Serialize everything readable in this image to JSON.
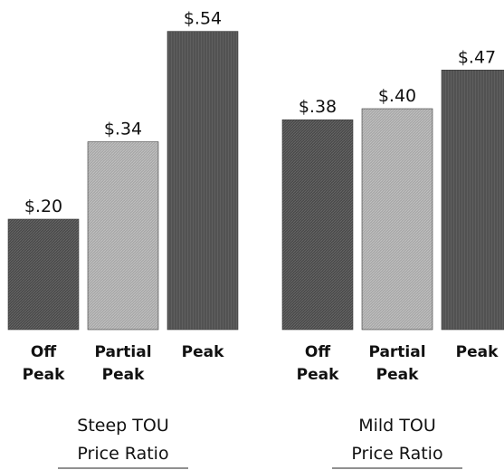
{
  "chart_data": {
    "type": "bar",
    "ylim": [
      0,
      0.6
    ],
    "grid": false,
    "legend": "none",
    "groups": [
      {
        "label_lines": [
          "Steep TOU",
          "Price Ratio"
        ],
        "bars": [
          {
            "category_lines": [
              "Off",
              "Peak"
            ],
            "value": 0.2,
            "label": "$.20",
            "color": "#4d4d4d"
          },
          {
            "category_lines": [
              "Partial",
              "Peak"
            ],
            "value": 0.34,
            "label": "$.34",
            "color": "#a6a6a6"
          },
          {
            "category_lines": [
              "Peak"
            ],
            "value": 0.54,
            "label": "$.54",
            "color": "#595959"
          }
        ]
      },
      {
        "label_lines": [
          "Mild TOU",
          "Price Ratio"
        ],
        "bars": [
          {
            "category_lines": [
              "Off",
              "Peak"
            ],
            "value": 0.38,
            "label": "$.38",
            "color": "#4d4d4d"
          },
          {
            "category_lines": [
              "Partial",
              "Peak"
            ],
            "value": 0.4,
            "label": "$.40",
            "color": "#a6a6a6"
          },
          {
            "category_lines": [
              "Peak"
            ],
            "value": 0.47,
            "label": "$.47",
            "color": "#595959"
          }
        ]
      }
    ]
  }
}
